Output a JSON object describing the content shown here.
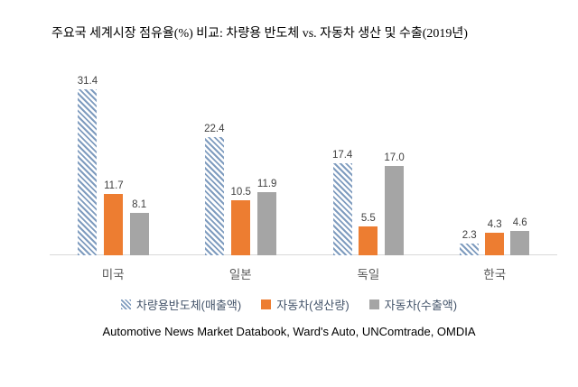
{
  "title": "주요국 세계시장 점유율(%) 비교: 차량용 반도체 vs. 자동차 생산 및 수출(2019년)",
  "source": "Automotive News Market Databook, Ward's Auto, UNComtrade, OMDIA",
  "colors": {
    "hatch_blue": "#7f9cbf",
    "orange": "#ed7d31",
    "gray": "#a5a5a5",
    "axis": "#d9d9d9",
    "value_label": "#404040",
    "category_label": "#595959",
    "legend_text": "#44546a"
  },
  "chart_data": {
    "type": "bar",
    "title": "주요국 세계시장 점유율(%) 비교: 차량용 반도체 vs. 자동차 생산 및 수출(2019년)",
    "categories": [
      "미국",
      "일본",
      "독일",
      "한국"
    ],
    "series": [
      {
        "name": "차량용반도체(매출액)",
        "style": "hatched",
        "color": "#7f9cbf",
        "values": [
          31.4,
          22.4,
          17.4,
          2.3
        ]
      },
      {
        "name": "자동차(생산량)",
        "style": "solid",
        "color": "#ed7d31",
        "values": [
          11.7,
          10.5,
          5.5,
          4.3
        ]
      },
      {
        "name": "자동차(수출액)",
        "style": "solid",
        "color": "#a5a5a5",
        "values": [
          8.1,
          11.9,
          17.0,
          4.6
        ]
      }
    ],
    "xlabel": "",
    "ylabel": "",
    "ylim": [
      0,
      33
    ],
    "grid": false,
    "legend_position": "bottom",
    "value_labels": true,
    "value_label_decimals": 1
  }
}
